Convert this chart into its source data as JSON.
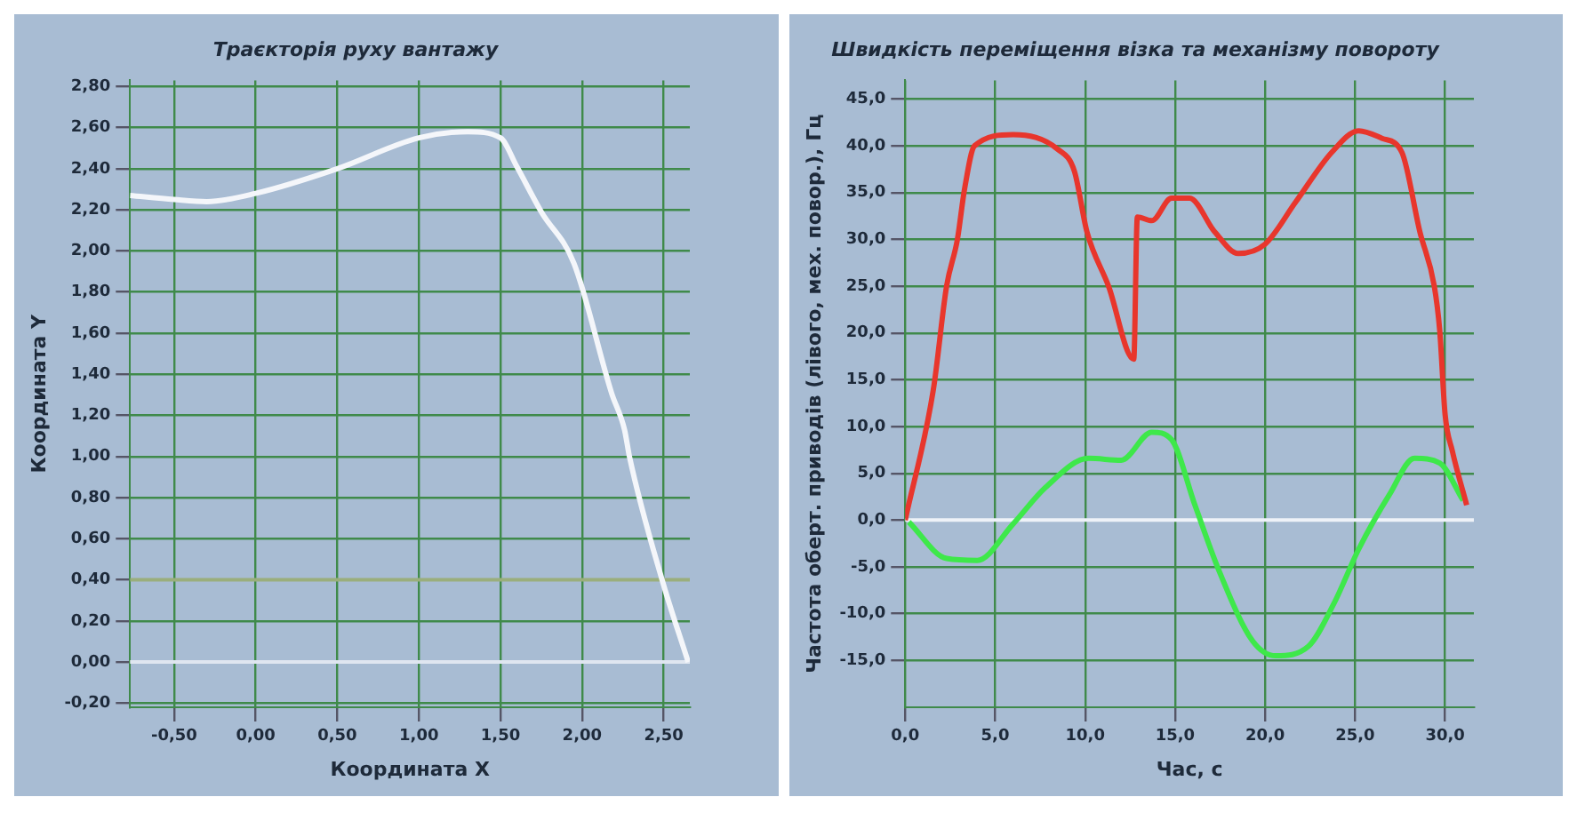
{
  "chart_data": [
    {
      "type": "line",
      "title": "Траєкторія руху вантажу",
      "xlabel": "Координата X",
      "ylabel": "Координата Y",
      "xlim": [
        -0.77,
        2.66
      ],
      "ylim": [
        -0.22,
        2.83
      ],
      "xticks": [
        {
          "value": -0.5,
          "label": "-0,50"
        },
        {
          "value": 0,
          "label": "0,00"
        },
        {
          "value": 0.5,
          "label": "0,50"
        },
        {
          "value": 1,
          "label": "1,00"
        },
        {
          "value": 1.5,
          "label": "1,50"
        },
        {
          "value": 2,
          "label": "2,00"
        },
        {
          "value": 2.5,
          "label": "2,50"
        }
      ],
      "yticks": [
        {
          "value": -0.2,
          "label": "-0,20"
        },
        {
          "value": 0,
          "label": "0,00"
        },
        {
          "value": 0.2,
          "label": "0,20"
        },
        {
          "value": 0.4,
          "label": "0,40"
        },
        {
          "value": 0.6,
          "label": "0,60"
        },
        {
          "value": 0.8,
          "label": "0,80"
        },
        {
          "value": 1,
          "label": "1,00"
        },
        {
          "value": 1.2,
          "label": "1,20"
        },
        {
          "value": 1.4,
          "label": "1,40"
        },
        {
          "value": 1.6,
          "label": "1,60"
        },
        {
          "value": 1.8,
          "label": "1,80"
        },
        {
          "value": 2,
          "label": "2,00"
        },
        {
          "value": 2.2,
          "label": "2,20"
        },
        {
          "value": 2.4,
          "label": "2,40"
        },
        {
          "value": 2.6,
          "label": "2,60"
        },
        {
          "value": 2.8,
          "label": "2,80"
        }
      ],
      "grid": true,
      "legend": false,
      "series": [
        {
          "color": "#f4f6fa",
          "x": [
            -0.77,
            -0.5,
            -0.3,
            0,
            0.5,
            1.0,
            1.3,
            1.5,
            1.6,
            1.75,
            1.95,
            2.18,
            2.26,
            2.29,
            2.49,
            2.65
          ],
          "values": [
            2.27,
            2.25,
            2.24,
            2.28,
            2.4,
            2.55,
            2.58,
            2.55,
            2.41,
            2.19,
            1.94,
            1.31,
            1.13,
            1.0,
            0.4,
            0.0
          ]
        }
      ],
      "ref_lines": [
        {
          "axis": "y",
          "value": 0.4,
          "color": "#9aae7c"
        },
        {
          "axis": "y",
          "value": 0,
          "color": "#dfe6f0"
        }
      ]
    },
    {
      "type": "line",
      "title": "Швидкість переміщення візка та механізму повороту",
      "xlabel": "Час, с",
      "ylabel": "Частота оберт. приводів (лівого, мех. повор.), Гц",
      "xlim": [
        0,
        31.6
      ],
      "ylim": [
        -20,
        47
      ],
      "xticks": [
        {
          "value": 0,
          "label": "0,0"
        },
        {
          "value": 5,
          "label": "5,0"
        },
        {
          "value": 10,
          "label": "10,0"
        },
        {
          "value": 15,
          "label": "15,0"
        },
        {
          "value": 20,
          "label": "20,0"
        },
        {
          "value": 25,
          "label": "25,0"
        },
        {
          "value": 30,
          "label": "30,0"
        }
      ],
      "yticks": [
        {
          "value": -15,
          "label": "-15,0"
        },
        {
          "value": -10,
          "label": "-10,0"
        },
        {
          "value": -5,
          "label": "-5,0"
        },
        {
          "value": 0,
          "label": "0,0"
        },
        {
          "value": 5,
          "label": "5,0"
        },
        {
          "value": 10,
          "label": "10,0"
        },
        {
          "value": 15,
          "label": "15,0"
        },
        {
          "value": 20,
          "label": "20,0"
        },
        {
          "value": 25,
          "label": "25,0"
        },
        {
          "value": 30,
          "label": "30,0"
        },
        {
          "value": 35,
          "label": "35,0"
        },
        {
          "value": 40,
          "label": "40,0"
        },
        {
          "value": 45,
          "label": "45,0"
        }
      ],
      "grid": true,
      "legend": false,
      "series": [
        {
          "color": "#e8362c",
          "x": [
            0,
            1.56,
            2.3,
            2.9,
            3.3,
            3.85,
            6.0,
            8.5,
            9.4,
            10.1,
            11.3,
            12.7,
            12.9,
            13.7,
            14.8,
            15.8,
            17.2,
            18.5,
            20.0,
            21.7,
            23.7,
            25.2,
            26.5,
            27.6,
            28.6,
            29.4,
            29.7,
            30.0,
            30.4,
            31.2
          ],
          "values": [
            0,
            13.9,
            25,
            30,
            35.4,
            40,
            41.2,
            39.6,
            37.3,
            30.8,
            25,
            17.2,
            32.4,
            32,
            34.4,
            34.4,
            30.8,
            28.5,
            29.5,
            34,
            39.3,
            41.6,
            40.8,
            39.3,
            30.8,
            25,
            20.3,
            11.3,
            7.4,
            1.6
          ]
        },
        {
          "color": "#3ee84a",
          "x": [
            0.2,
            2.3,
            4.0,
            6.0,
            7.8,
            10.2,
            12.0,
            13.7,
            14.8,
            16.1,
            17.5,
            19.3,
            20.6,
            22.4,
            23.8,
            25.2,
            26.9,
            28.3,
            29.7,
            31.0
          ],
          "values": [
            -0.2,
            -4.1,
            -4.3,
            -0.4,
            3.5,
            6.6,
            6.4,
            9.4,
            8.6,
            1.6,
            -5.7,
            -12.9,
            -14.5,
            -13.5,
            -9.0,
            -3.1,
            2.7,
            6.6,
            6.1,
            2.1
          ]
        }
      ],
      "ref_lines": [
        {
          "axis": "y",
          "value": 0,
          "color": "#eef2f8"
        }
      ]
    }
  ]
}
